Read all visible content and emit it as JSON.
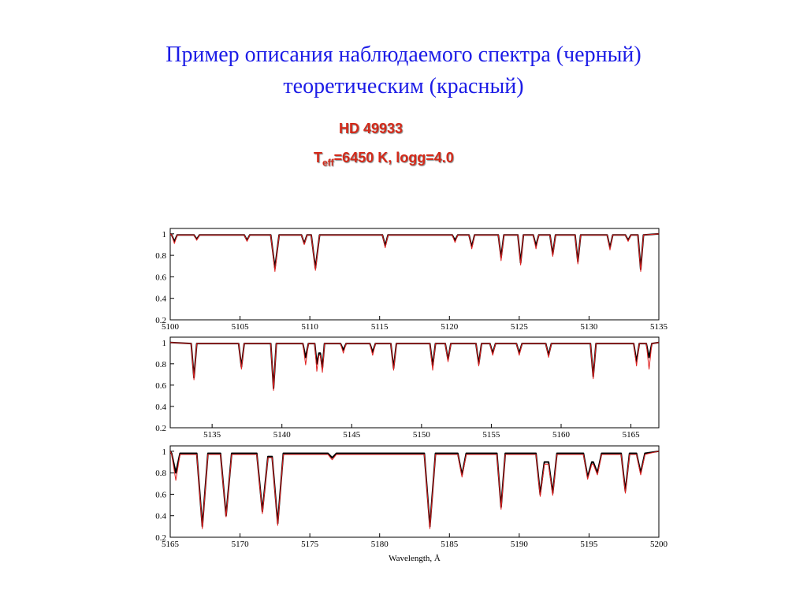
{
  "header": {
    "title": "Пример описания наблюдаемого спектра (черный) теоретическим (красный)",
    "object": "HD 49933",
    "params": {
      "main": "T",
      "sub": "eff",
      "rest": "=6450 K, logg=4.0"
    }
  },
  "chart_data": [
    {
      "type": "line",
      "xlim": [
        5100,
        5135
      ],
      "xticks": [
        5100,
        5105,
        5110,
        5115,
        5120,
        5125,
        5130,
        5135
      ],
      "ylim": [
        0.2,
        1.05
      ],
      "yticks": [
        0.2,
        0.4,
        0.6,
        0.8,
        1
      ],
      "x": [
        5100,
        5100.1,
        5100.3,
        5100.5,
        5101.7,
        5101.9,
        5102.1,
        5105.3,
        5105.5,
        5105.7,
        5107.2,
        5107.5,
        5107.8,
        5109.4,
        5109.6,
        5109.8,
        5110.1,
        5110.4,
        5110.7,
        5115.2,
        5115.4,
        5115.6,
        5120.2,
        5120.4,
        5120.6,
        5121.4,
        5121.6,
        5121.8,
        5123.5,
        5123.7,
        5123.9,
        5124.9,
        5125.1,
        5125.3,
        5126,
        5126.2,
        5126.4,
        5127.2,
        5127.4,
        5127.6,
        5129,
        5129.2,
        5129.4,
        5131.3,
        5131.5,
        5131.7,
        5132.6,
        5132.8,
        5133,
        5133.5,
        5133.7,
        5133.9,
        5135
      ],
      "series": [
        {
          "color": "#000000",
          "values": [
            1,
            0.99,
            0.93,
            0.99,
            0.99,
            0.95,
            0.99,
            0.99,
            0.94,
            0.99,
            0.99,
            0.68,
            0.99,
            0.99,
            0.91,
            0.99,
            0.99,
            0.68,
            0.99,
            0.99,
            0.89,
            0.99,
            0.99,
            0.94,
            0.99,
            0.99,
            0.88,
            0.99,
            0.99,
            0.78,
            0.99,
            0.99,
            0.73,
            0.99,
            0.99,
            0.89,
            0.99,
            0.99,
            0.81,
            0.99,
            0.99,
            0.74,
            0.99,
            0.99,
            0.87,
            0.99,
            0.99,
            0.94,
            0.99,
            0.99,
            0.67,
            0.99,
            1
          ]
        },
        {
          "color": "#e02020",
          "values": [
            1,
            0.99,
            0.91,
            0.99,
            0.99,
            0.94,
            0.99,
            0.99,
            0.93,
            0.99,
            0.99,
            0.65,
            0.99,
            0.99,
            0.9,
            0.99,
            0.99,
            0.66,
            0.99,
            0.99,
            0.87,
            0.99,
            0.99,
            0.92,
            0.99,
            0.99,
            0.86,
            0.99,
            0.99,
            0.75,
            0.99,
            0.99,
            0.71,
            0.99,
            0.99,
            0.86,
            0.99,
            0.99,
            0.79,
            0.99,
            0.99,
            0.72,
            0.99,
            0.99,
            0.85,
            0.99,
            0.99,
            0.93,
            0.99,
            0.99,
            0.65,
            0.99,
            1
          ]
        }
      ]
    },
    {
      "type": "line",
      "xlim": [
        5132,
        5167
      ],
      "xticks": [
        5135,
        5140,
        5145,
        5150,
        5155,
        5160,
        5165
      ],
      "ylim": [
        0.2,
        1.05
      ],
      "yticks": [
        0.2,
        0.4,
        0.6,
        0.8,
        1
      ],
      "x": [
        5132,
        5133.5,
        5133.7,
        5133.9,
        5136.9,
        5137.1,
        5137.3,
        5139.2,
        5139.4,
        5139.6,
        5141.5,
        5141.7,
        5141.9,
        5142.35,
        5142.5,
        5142.65,
        5142.75,
        5142.9,
        5143.05,
        5144.2,
        5144.4,
        5144.6,
        5146.3,
        5146.5,
        5146.7,
        5147.8,
        5148,
        5148.2,
        5150.6,
        5150.8,
        5151,
        5151.7,
        5151.9,
        5152.1,
        5153.9,
        5154.1,
        5154.3,
        5154.9,
        5155.1,
        5155.3,
        5156.8,
        5157,
        5157.2,
        5158.9,
        5159.1,
        5159.3,
        5162.1,
        5162.3,
        5162.5,
        5165.2,
        5165.4,
        5165.6,
        5166.1,
        5166.3,
        5166.5,
        5167
      ],
      "series": [
        {
          "color": "#000000",
          "values": [
            1,
            0.99,
            0.67,
            0.99,
            0.99,
            0.77,
            0.99,
            0.99,
            0.57,
            0.99,
            0.99,
            0.86,
            0.99,
            0.99,
            0.8,
            0.9,
            0.9,
            0.76,
            0.99,
            0.99,
            0.93,
            0.99,
            0.99,
            0.91,
            0.99,
            0.99,
            0.76,
            0.99,
            0.99,
            0.78,
            0.99,
            0.99,
            0.84,
            0.99,
            0.99,
            0.8,
            0.99,
            0.99,
            0.9,
            0.99,
            0.99,
            0.9,
            0.99,
            0.99,
            0.88,
            0.99,
            0.99,
            0.68,
            0.99,
            0.99,
            0.82,
            0.99,
            0.99,
            0.86,
            0.99,
            1
          ]
        },
        {
          "color": "#e02020",
          "values": [
            1,
            0.99,
            0.65,
            0.99,
            0.99,
            0.75,
            0.99,
            0.99,
            0.55,
            0.99,
            0.99,
            0.79,
            0.99,
            0.99,
            0.73,
            0.88,
            0.88,
            0.72,
            0.99,
            0.99,
            0.9,
            0.99,
            0.99,
            0.88,
            0.99,
            0.99,
            0.74,
            0.99,
            0.99,
            0.74,
            0.99,
            0.99,
            0.82,
            0.99,
            0.99,
            0.78,
            0.99,
            0.99,
            0.88,
            0.99,
            0.99,
            0.88,
            0.99,
            0.99,
            0.86,
            0.99,
            0.99,
            0.66,
            0.99,
            0.99,
            0.78,
            0.99,
            0.99,
            0.75,
            0.99,
            1
          ]
        }
      ]
    },
    {
      "type": "line",
      "xlabel": "Wavelength,  Å",
      "xlim": [
        5165,
        5200
      ],
      "xticks": [
        5165,
        5170,
        5175,
        5180,
        5185,
        5190,
        5195,
        5200
      ],
      "ylim": [
        0.2,
        1.05
      ],
      "yticks": [
        0.2,
        0.4,
        0.6,
        0.8,
        1
      ],
      "x": [
        5165,
        5165.1,
        5165.4,
        5165.7,
        5166.9,
        5167.3,
        5167.7,
        5168.6,
        5169,
        5169.4,
        5171.2,
        5171.6,
        5172,
        5172.3,
        5172.7,
        5173.1,
        5176.3,
        5176.6,
        5176.9,
        5183.2,
        5183.6,
        5184,
        5185.6,
        5185.9,
        5186.2,
        5188.4,
        5188.7,
        5189,
        5191.2,
        5191.5,
        5191.8,
        5192.1,
        5192.4,
        5192.7,
        5194.6,
        5194.9,
        5195.2,
        5195.3,
        5195.6,
        5195.9,
        5197.3,
        5197.6,
        5197.9,
        5198.4,
        5198.7,
        5199,
        5200
      ],
      "series": [
        {
          "color": "#000000",
          "values": [
            1,
            0.98,
            0.8,
            0.98,
            0.98,
            0.3,
            0.98,
            0.98,
            0.4,
            0.98,
            0.98,
            0.44,
            0.95,
            0.95,
            0.33,
            0.98,
            0.98,
            0.94,
            0.98,
            0.98,
            0.3,
            0.98,
            0.98,
            0.78,
            0.98,
            0.98,
            0.48,
            0.98,
            0.98,
            0.6,
            0.9,
            0.9,
            0.61,
            0.98,
            0.98,
            0.76,
            0.9,
            0.9,
            0.8,
            0.98,
            0.98,
            0.63,
            0.98,
            0.98,
            0.8,
            0.98,
            1
          ]
        },
        {
          "color": "#e02020",
          "values": [
            1,
            0.97,
            0.73,
            0.97,
            0.97,
            0.28,
            0.97,
            0.97,
            0.39,
            0.97,
            0.97,
            0.42,
            0.94,
            0.94,
            0.31,
            0.97,
            0.97,
            0.92,
            0.97,
            0.97,
            0.28,
            0.97,
            0.97,
            0.76,
            0.97,
            0.97,
            0.46,
            0.97,
            0.97,
            0.58,
            0.88,
            0.88,
            0.59,
            0.97,
            0.97,
            0.74,
            0.88,
            0.88,
            0.78,
            0.97,
            0.97,
            0.61,
            0.97,
            0.97,
            0.78,
            0.97,
            1
          ]
        }
      ]
    }
  ]
}
